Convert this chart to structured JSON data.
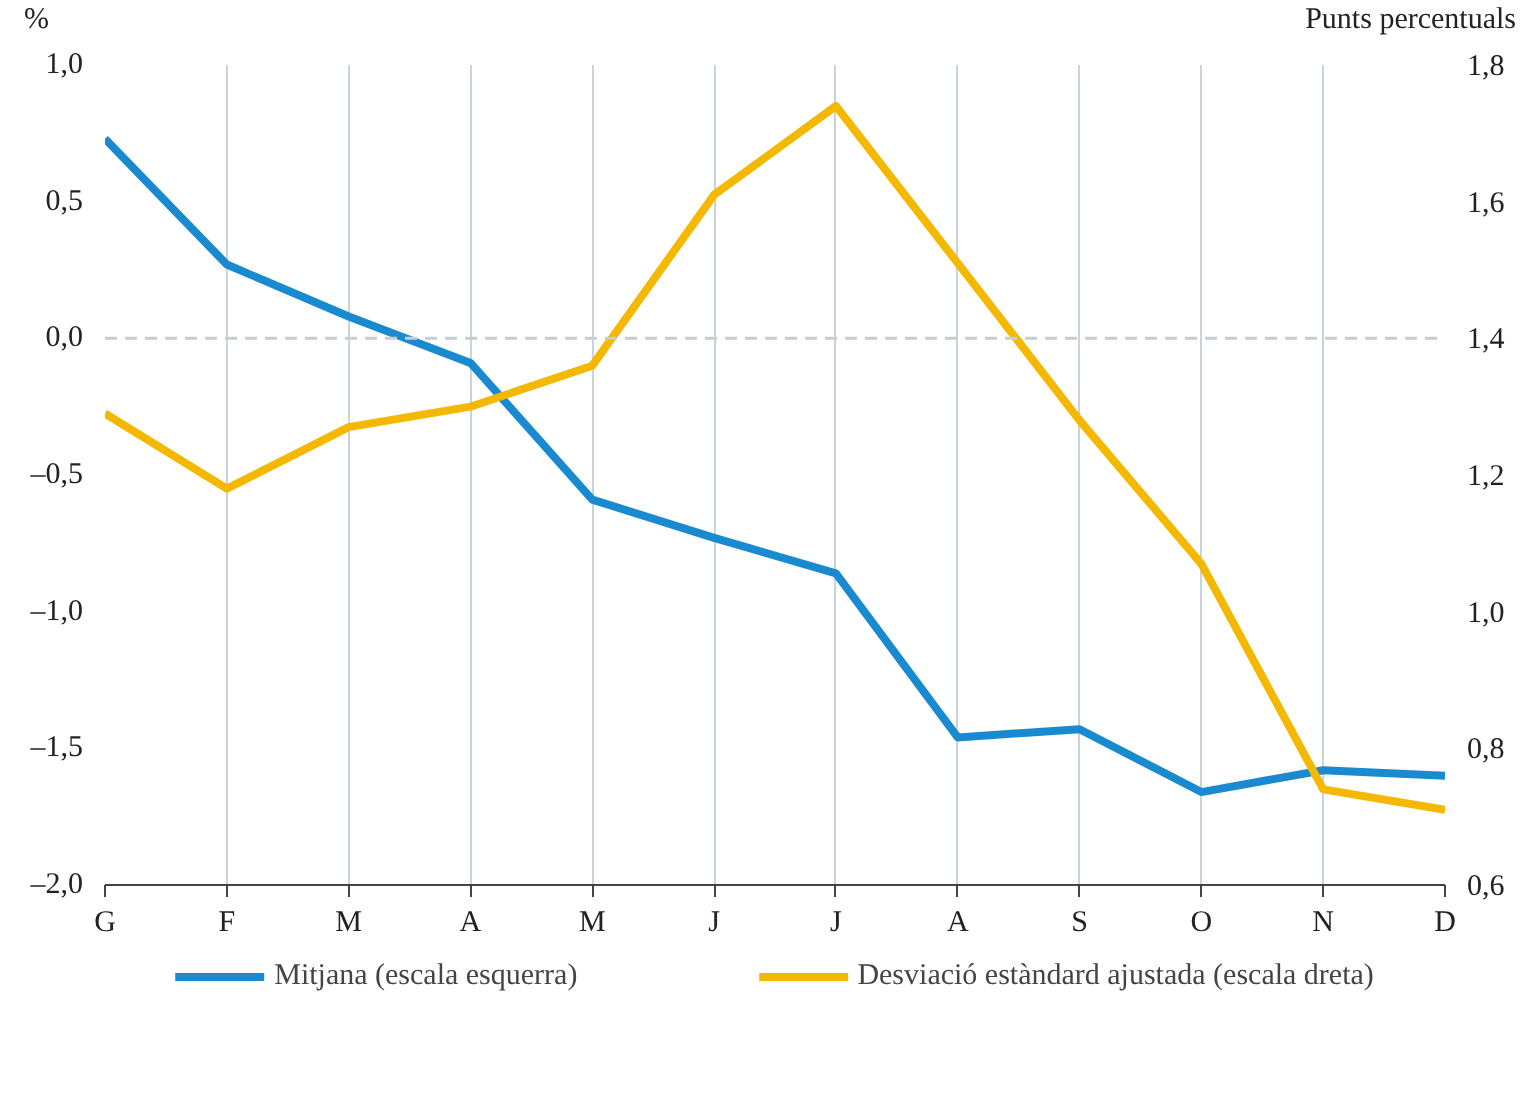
{
  "chart_data": {
    "type": "line",
    "xlabel": null,
    "ylabel": "%",
    "y2label": "Punts percentuals",
    "categories": [
      "G",
      "F",
      "M",
      "A",
      "M",
      "J",
      "J",
      "A",
      "S",
      "O",
      "N",
      "D"
    ],
    "series": [
      {
        "name": "Mitjana (escala esquerra)",
        "color": "#1a8ad0",
        "values": [
          0.73,
          0.27,
          0.08,
          -0.09,
          -0.59,
          -0.73,
          -0.86,
          -1.46,
          -1.43,
          -1.66,
          -1.58,
          -1.6
        ]
      },
      {
        "name": "Desviació estàndard ajustada (escala dreta)",
        "color": "#f5b800",
        "axis": "y2",
        "values": [
          1.29,
          1.18,
          1.27,
          1.3,
          1.36,
          1.61,
          1.74,
          1.51,
          1.28,
          1.07,
          0.74,
          0.71
        ]
      }
    ],
    "ylim": [
      -2.0,
      1.0
    ],
    "yticks": [
      {
        "value": -2.0,
        "label": "–2,0"
      },
      {
        "value": -1.5,
        "label": "–1,5"
      },
      {
        "value": -1.0,
        "label": "–1,0"
      },
      {
        "value": -0.5,
        "label": "–0,5"
      },
      {
        "value": 0.0,
        "label": "0,0"
      },
      {
        "value": 0.5,
        "label": "0,5"
      },
      {
        "value": 1.0,
        "label": "1,0"
      }
    ],
    "y2lim": [
      0.6,
      1.8
    ],
    "y2ticks": [
      {
        "value": 0.6,
        "label": "0,6"
      },
      {
        "value": 0.8,
        "label": "0,8"
      },
      {
        "value": 1.0,
        "label": "1,0"
      },
      {
        "value": 1.2,
        "label": "1,2"
      },
      {
        "value": 1.4,
        "label": "1,4"
      },
      {
        "value": 1.6,
        "label": "1,6"
      },
      {
        "value": 1.8,
        "label": "1,8"
      }
    ],
    "ref_lines": [
      {
        "axis": "y",
        "value": 0.0,
        "color": "#c8cdd2",
        "line_style": "dashed"
      }
    ],
    "grid": "x",
    "legend": "bottom",
    "marker": "none",
    "line_style": "solid"
  }
}
